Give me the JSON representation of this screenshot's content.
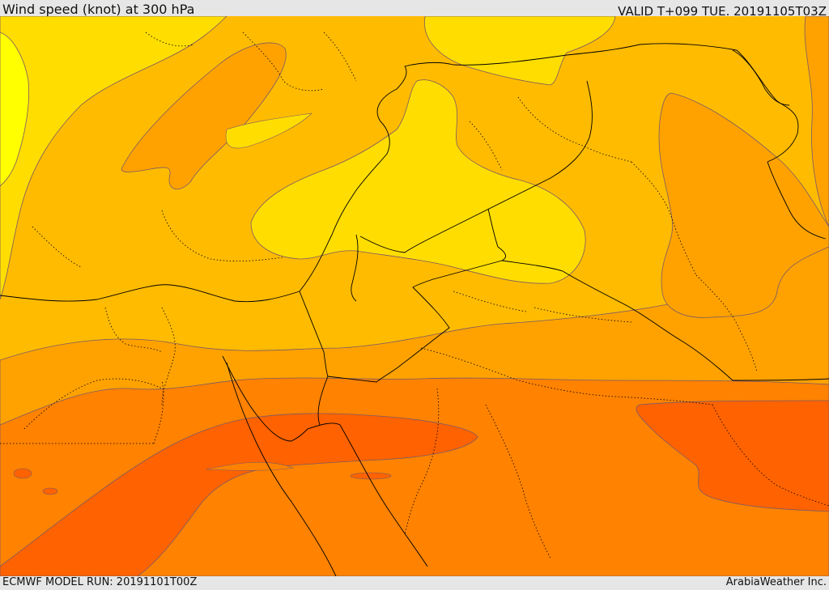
{
  "header": {
    "title": "Wind speed (knot) at 300 hPa",
    "valid_time": "VALID T+099 TUE. 20191105T03Z"
  },
  "footer": {
    "model_run": "ECMWF MODEL RUN: 20191101T00Z",
    "credit": "ArabiaWeather Inc."
  },
  "colors": {
    "band_yellow": "#FFFF00",
    "band_pale": "#FFDD00",
    "band_light_orange": "#FFBB00",
    "band_orange": "#FFA200",
    "band_deep_orange": "#FF8200",
    "band_red_orange": "#FF6200",
    "contour_line": "#7a5a66",
    "border_line": "#000000"
  }
}
